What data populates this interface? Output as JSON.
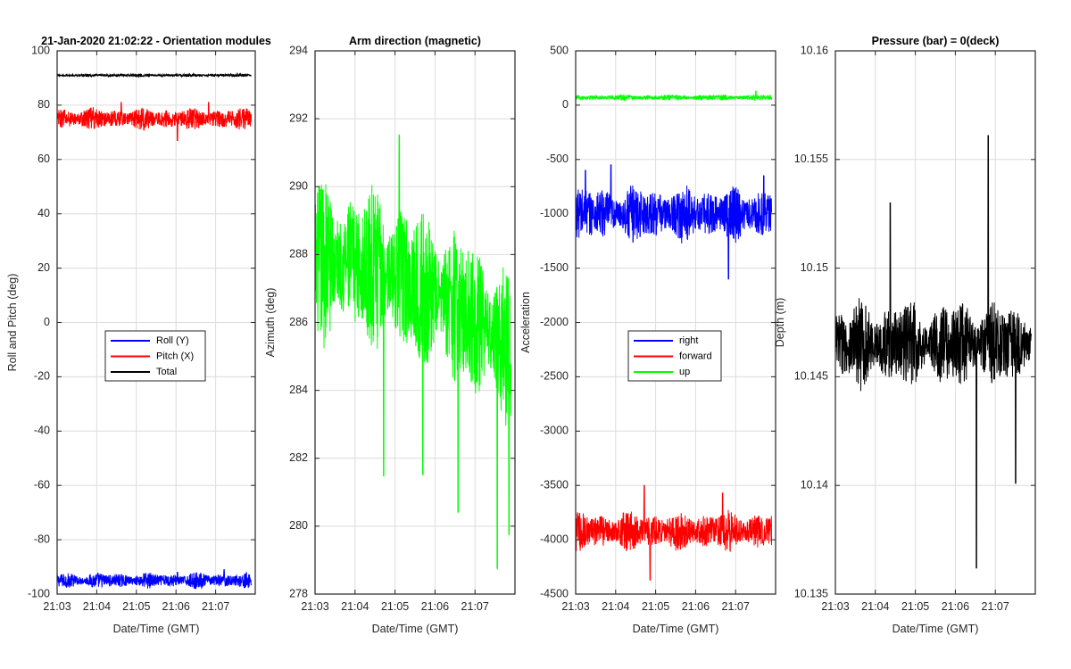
{
  "figure": {
    "background": "#ffffff",
    "axis_color": "#262626",
    "grid_color": "#dcdcdc"
  },
  "chart_data": [
    {
      "type": "line",
      "title": "21-Jan-2020 21:02:22 - Orientation modules",
      "xlabel": "Date/Time (GMT)",
      "ylabel": "Roll and Pitch (deg)",
      "xlim": [
        "21:03",
        "21:08"
      ],
      "xticks": [
        "21:03",
        "21:04",
        "21:05",
        "21:06",
        "21:07"
      ],
      "ylim": [
        -100,
        100
      ],
      "yticks": [
        -100,
        -80,
        -60,
        -40,
        -20,
        0,
        20,
        40,
        60,
        80,
        100
      ],
      "ytick_labels": [
        "-100",
        "-80",
        "-60",
        "-40",
        "-20",
        "0",
        "20",
        "40",
        "60",
        "80",
        "100"
      ],
      "grid": true,
      "legend": {
        "position": "center-left",
        "entries": [
          "Roll (Y)",
          "Pitch (X)",
          "Total"
        ]
      },
      "series": [
        {
          "name": "Roll (Y)",
          "color": "#0000ff",
          "mean": -95,
          "amplitude": 3.2,
          "spikes": [
            [
              0.62,
              3
            ],
            [
              0.86,
              4
            ]
          ]
        },
        {
          "name": "Pitch (X)",
          "color": "#ff0000",
          "mean": 75,
          "amplitude": 4.5,
          "spikes": [
            [
              0.33,
              6
            ],
            [
              0.62,
              -8
            ],
            [
              0.78,
              6
            ]
          ]
        },
        {
          "name": "Total",
          "color": "#000000",
          "mean": 91,
          "amplitude": 0.6,
          "spikes": []
        }
      ]
    },
    {
      "type": "line",
      "title": "Arm direction (magnetic)",
      "xlabel": "Date/Time (GMT)",
      "ylabel": "Azimuth (deg)",
      "xlim": [
        "21:03",
        "21:08"
      ],
      "xticks": [
        "21:03",
        "21:04",
        "21:05",
        "21:06",
        "21:07"
      ],
      "ylim": [
        278,
        294
      ],
      "yticks": [
        278,
        280,
        282,
        284,
        286,
        288,
        290,
        292,
        294
      ],
      "ytick_labels": [
        "278",
        "280",
        "282",
        "284",
        "286",
        "288",
        "290",
        "292",
        "294"
      ],
      "grid": true,
      "series": [
        {
          "name": "",
          "color": "#00ff00",
          "mean": 287.8,
          "amplitude": 2.6,
          "trend_end": 285.2,
          "spikes": [
            [
              0.35,
              -6
            ],
            [
              0.43,
              4.2
            ],
            [
              0.55,
              -5.5
            ],
            [
              0.73,
              -6
            ],
            [
              0.93,
              -6.8
            ],
            [
              0.99,
              -5.5
            ]
          ]
        }
      ]
    },
    {
      "type": "line",
      "title": "",
      "xlabel": "Date/Time (GMT)",
      "ylabel": "Acceleration",
      "xlim": [
        "21:03",
        "21:08"
      ],
      "xticks": [
        "21:03",
        "21:04",
        "21:05",
        "21:06",
        "21:07"
      ],
      "ylim": [
        -4500,
        500
      ],
      "yticks": [
        -4500,
        -4000,
        -3500,
        -3000,
        -2500,
        -2000,
        -1500,
        -1000,
        -500,
        0,
        500
      ],
      "ytick_labels": [
        "-4500",
        "-4000",
        "-3500",
        "-3000",
        "-2500",
        "-2000",
        "-1500",
        "-1000",
        "-500",
        "0",
        "500"
      ],
      "grid": true,
      "legend": {
        "position": "center-right",
        "entries": [
          "right",
          "forward",
          "up"
        ]
      },
      "series": [
        {
          "name": "right",
          "color": "#0000ff",
          "mean": -1000,
          "amplitude": 280,
          "spikes": [
            [
              0.05,
              400
            ],
            [
              0.18,
              450
            ],
            [
              0.78,
              -600
            ],
            [
              0.96,
              350
            ]
          ]
        },
        {
          "name": "forward",
          "color": "#ff0000",
          "mean": -3920,
          "amplitude": 200,
          "spikes": [
            [
              0.35,
              420
            ],
            [
              0.75,
              350
            ],
            [
              0.38,
              -450
            ]
          ]
        },
        {
          "name": "up",
          "color": "#00ff00",
          "mean": 70,
          "amplitude": 30,
          "spikes": [
            [
              0.92,
              60
            ]
          ]
        }
      ]
    },
    {
      "type": "line",
      "title": "Pressure (bar) = 0(deck)",
      "xlabel": "Date/Time (GMT)",
      "ylabel": "Depth (m)",
      "xlim": [
        "21:03",
        "21:08"
      ],
      "xticks": [
        "21:03",
        "21:04",
        "21:05",
        "21:06",
        "21:07"
      ],
      "ylim": [
        10.135,
        10.16
      ],
      "yticks": [
        10.135,
        10.14,
        10.145,
        10.15,
        10.155,
        10.16
      ],
      "ytick_labels": [
        "10.135",
        "10.14",
        "10.145",
        "10.15",
        "10.155",
        "10.16"
      ],
      "grid": true,
      "series": [
        {
          "name": "",
          "color": "#000000",
          "mean": 10.1465,
          "amplitude": 0.0022,
          "spikes": [
            [
              0.78,
              0.0096
            ],
            [
              0.72,
              -0.0103
            ],
            [
              0.92,
              -0.0064
            ],
            [
              0.28,
              0.0065
            ]
          ]
        }
      ]
    }
  ]
}
